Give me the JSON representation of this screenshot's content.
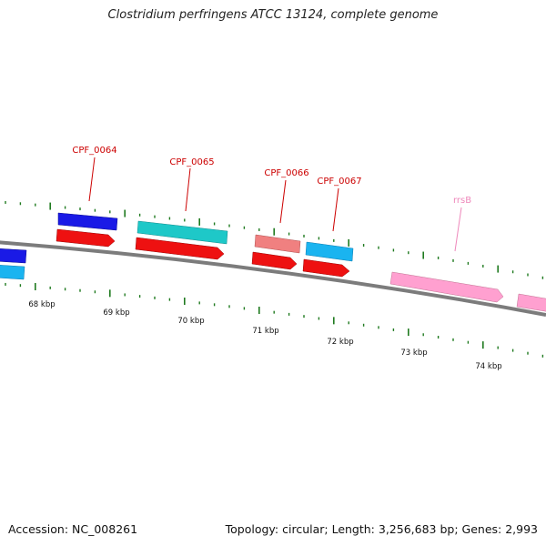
{
  "title": "Clostridium perfringens ATCC 13124, complete genome",
  "footer": {
    "accession": "Accession: NC_008261",
    "summary": "Topology: circular; Length: 3,256,683 bp; Genes: 2,993"
  },
  "scale_labels": [
    "68 kbp",
    "69 kbp",
    "70 kbp",
    "71 kbp",
    "72 kbp",
    "73 kbp",
    "74 kbp"
  ],
  "gene_labels": [
    "CPF_0064",
    "CPF_0065",
    "CPF_0066",
    "CPF_0067",
    "rrsB"
  ],
  "colors": {
    "backbone": "#808080",
    "blue_gene": "#1a1ae6",
    "cyan_gene": "#1ec8c8",
    "skyblue_gene": "#1ab4f0",
    "red_gene": "#ee1111",
    "salmon_gene": "#f08080",
    "pink_rrna": "#ffa0d0",
    "tick_green": "#1f7a1f",
    "label_red": "#cc0000",
    "label_pink": "#ee88bb"
  }
}
